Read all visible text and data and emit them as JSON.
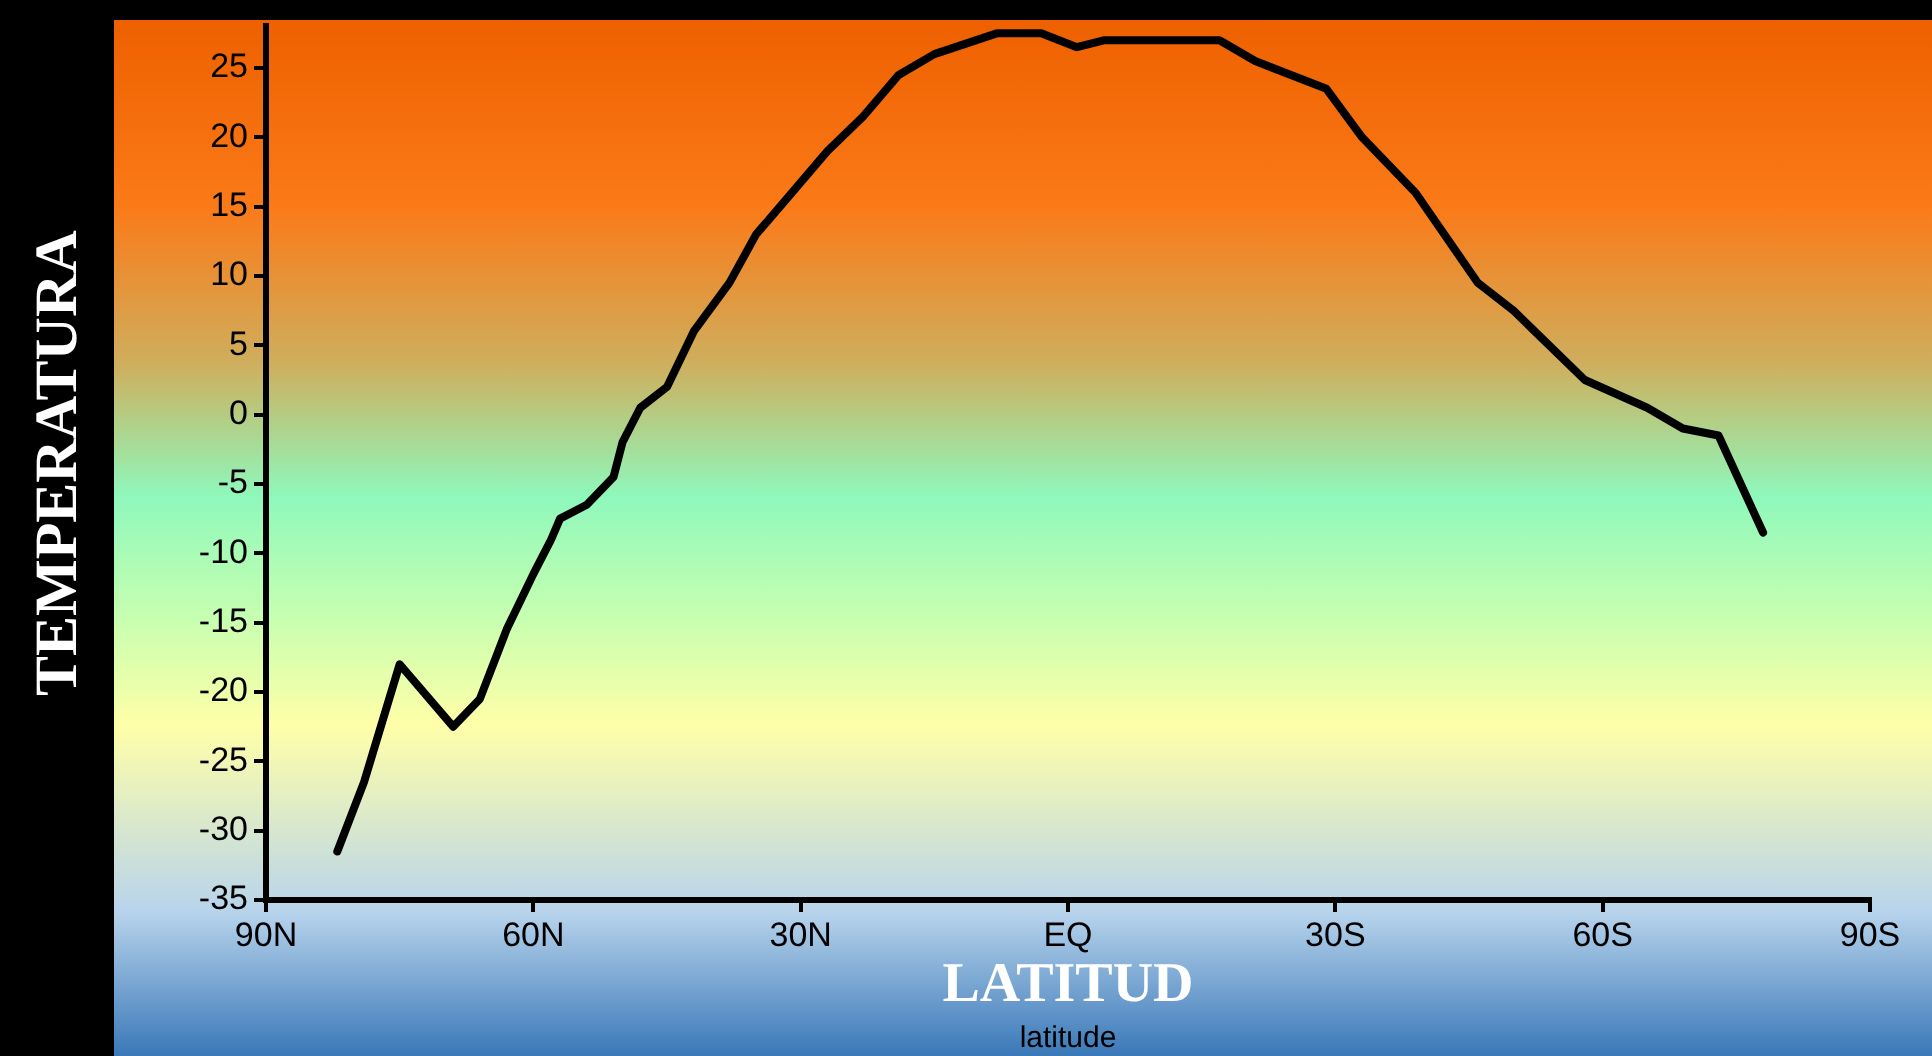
{
  "chart_data": {
    "type": "line",
    "xlabel": "LATITUD",
    "ylabel": "TEMPERATURA",
    "annotations": [
      "latitude"
    ],
    "x": [
      82,
      79,
      75,
      69,
      66,
      63,
      60,
      58,
      57,
      54,
      51,
      50,
      48,
      45,
      42,
      38,
      35,
      31,
      27,
      23,
      19,
      15,
      8,
      3,
      -1,
      -4,
      -9,
      -17,
      -21,
      -29,
      -33,
      -39,
      -46,
      -50,
      -58,
      -65,
      -69,
      -73,
      -78
    ],
    "series": [
      {
        "color": "#000000",
        "values": [
          -31.5,
          -26.5,
          -18,
          -22.5,
          -20.5,
          -15.5,
          -11.5,
          -9,
          -7.5,
          -6.5,
          -4.5,
          -2,
          0.5,
          2,
          6,
          9.5,
          13,
          16,
          19,
          21.5,
          24.5,
          26,
          27.5,
          27.5,
          26.5,
          27,
          27,
          27,
          25.5,
          23.5,
          20,
          16,
          9.5,
          7.5,
          2.5,
          0.5,
          -1,
          -1.5,
          -8.5
        ]
      }
    ],
    "xlim": [
      90,
      -90
    ],
    "xticks": [
      {
        "value": 90,
        "label": "90N"
      },
      {
        "value": 60,
        "label": "60N"
      },
      {
        "value": 30,
        "label": "30N"
      },
      {
        "value": 0,
        "label": "EQ"
      },
      {
        "value": -30,
        "label": "30S"
      },
      {
        "value": -60,
        "label": "60S"
      },
      {
        "value": -90,
        "label": "90S"
      }
    ],
    "ylim": [
      -35,
      28
    ],
    "yticks": [
      -35,
      -30,
      -25,
      -20,
      -15,
      -10,
      -5,
      0,
      5,
      10,
      15,
      20,
      25
    ],
    "grid": false,
    "legend": false,
    "marker": "none",
    "line_style": "solid"
  }
}
